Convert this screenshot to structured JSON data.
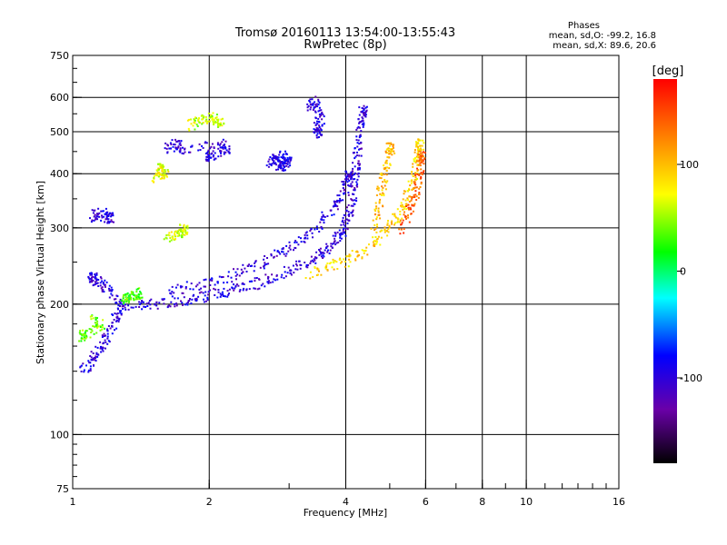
{
  "chart_data": {
    "type": "scatter",
    "title": "Tromsø 20160113 13:54:00-13:55:43",
    "subtitle": "RwPretec (8p)",
    "xlabel": "Frequency [MHz]",
    "ylabel": "Stationary phase Virtual Height [km]",
    "x_scale": "log",
    "y_scale": "log",
    "xlim": [
      1,
      16
    ],
    "ylim": [
      75,
      750
    ],
    "x_ticks": [
      1,
      2,
      4,
      6,
      8,
      10,
      16
    ],
    "y_ticks": [
      75,
      100,
      200,
      300,
      400,
      500,
      600,
      750
    ],
    "x_grid": [
      2,
      4,
      6,
      8,
      10
    ],
    "y_grid": [
      100,
      200,
      300,
      400,
      500,
      600
    ],
    "grid": true,
    "phase_box": {
      "title": "Phases",
      "line1": "mean, sd,O: -99.2, 16.8",
      "line2": "mean, sd,X: 89.6, 20.6"
    },
    "colorbar": {
      "label": "[deg]",
      "range": [
        -180,
        180
      ],
      "ticks": [
        100,
        0,
        -100
      ],
      "colormap": [
        "#000000",
        "#6a00a8",
        "#0000ff",
        "#00ffff",
        "#00ff00",
        "#ffff00",
        "#ff8000",
        "#ff0000"
      ]
    },
    "traces": [
      {
        "phase": -100,
        "points": [
          [
            1.35,
            200
          ],
          [
            1.5,
            201
          ],
          [
            1.7,
            204
          ],
          [
            1.9,
            208
          ],
          [
            2.1,
            213
          ],
          [
            2.3,
            218
          ],
          [
            2.6,
            226
          ],
          [
            2.9,
            236
          ],
          [
            3.2,
            248
          ],
          [
            3.5,
            262
          ],
          [
            3.7,
            275
          ],
          [
            3.9,
            292
          ],
          [
            4.0,
            310
          ],
          [
            4.1,
            340
          ],
          [
            4.15,
            380
          ],
          [
            4.2,
            420
          ],
          [
            4.25,
            470
          ],
          [
            4.3,
            520
          ],
          [
            4.35,
            560
          ]
        ]
      },
      {
        "phase": -100,
        "points": [
          [
            1.6,
            215
          ],
          [
            1.9,
            222
          ],
          [
            2.2,
            232
          ],
          [
            2.5,
            245
          ],
          [
            2.8,
            260
          ],
          [
            3.1,
            278
          ],
          [
            3.4,
            300
          ],
          [
            3.7,
            330
          ],
          [
            3.9,
            360
          ],
          [
            4.05,
            400
          ]
        ]
      },
      {
        "phase": 90,
        "points": [
          [
            3.3,
            236
          ],
          [
            3.7,
            245
          ],
          [
            4.1,
            256
          ],
          [
            4.5,
            272
          ],
          [
            4.9,
            295
          ],
          [
            5.2,
            320
          ],
          [
            5.4,
            350
          ],
          [
            5.6,
            390
          ],
          [
            5.7,
            430
          ],
          [
            5.8,
            470
          ]
        ]
      },
      {
        "phase": 100,
        "points": [
          [
            4.6,
            300
          ],
          [
            4.7,
            340
          ],
          [
            4.8,
            380
          ],
          [
            4.9,
            420
          ],
          [
            5.0,
            460
          ]
        ]
      },
      {
        "phase": 140,
        "points": [
          [
            5.3,
            300
          ],
          [
            5.5,
            330
          ],
          [
            5.7,
            360
          ],
          [
            5.8,
            400
          ],
          [
            5.85,
            440
          ]
        ]
      },
      {
        "phase": -100,
        "points": [
          [
            1.05,
            140
          ],
          [
            1.1,
            150
          ],
          [
            1.15,
            160
          ],
          [
            1.2,
            175
          ],
          [
            1.25,
            190
          ],
          [
            1.3,
            200
          ],
          [
            1.2,
            215
          ],
          [
            1.15,
            225
          ],
          [
            1.1,
            232
          ]
        ]
      },
      {
        "phase": -100,
        "points": [
          [
            1.1,
            320
          ],
          [
            1.15,
            325
          ],
          [
            1.2,
            318
          ]
        ]
      },
      {
        "phase": -95,
        "points": [
          [
            2.7,
            425
          ],
          [
            2.8,
            435
          ],
          [
            2.9,
            440
          ],
          [
            3.0,
            430
          ],
          [
            2.85,
            420
          ]
        ]
      },
      {
        "phase": -100,
        "points": [
          [
            3.3,
            570
          ],
          [
            3.4,
            590
          ],
          [
            3.5,
            540
          ],
          [
            3.45,
            500
          ]
        ]
      },
      {
        "phase": 60,
        "points": [
          [
            1.8,
            520
          ],
          [
            1.9,
            530
          ],
          [
            2.0,
            545
          ],
          [
            2.1,
            525
          ]
        ]
      },
      {
        "phase": 70,
        "points": [
          [
            1.5,
            395
          ],
          [
            1.6,
            405
          ],
          [
            1.55,
            412
          ]
        ]
      },
      {
        "phase": 60,
        "points": [
          [
            1.6,
            285
          ],
          [
            1.7,
            290
          ],
          [
            1.75,
            300
          ]
        ]
      },
      {
        "phase": 30,
        "points": [
          [
            1.35,
            210
          ],
          [
            1.4,
            214
          ],
          [
            1.3,
            206
          ]
        ]
      },
      {
        "phase": -100,
        "points": [
          [
            1.6,
            460
          ],
          [
            1.7,
            470
          ],
          [
            1.75,
            455
          ],
          [
            2.1,
            470
          ],
          [
            2.2,
            460
          ],
          [
            2.0,
            440
          ]
        ]
      },
      {
        "phase": 40,
        "points": [
          [
            1.1,
            185
          ],
          [
            1.15,
            180
          ],
          [
            1.05,
            170
          ]
        ]
      }
    ]
  }
}
